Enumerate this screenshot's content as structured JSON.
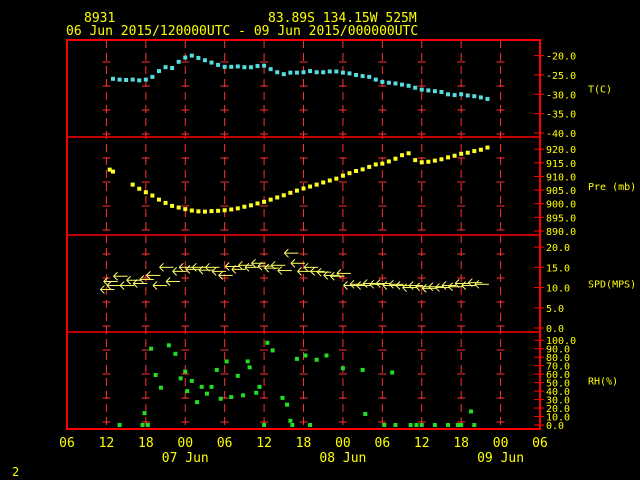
{
  "header": {
    "station": "8931",
    "location": "83.89S  134.15W   525M",
    "time_range": "06 Jun 2015/120000UTC - 09 Jun 2015/000000UTC"
  },
  "footer": {
    "page_number": "2"
  },
  "colors": {
    "background": "#000000",
    "frame": "#ff0000",
    "grid": "#ff3030",
    "labels": "#ffff00",
    "temperature": "#55dddd",
    "pressure": "#ffff22",
    "wind": "#ffff66",
    "humidity": "#22dd22"
  },
  "chart_data": {
    "type": "scatter",
    "x_axis": {
      "unit": "hours since 06 Jun 2015 06 UTC",
      "range": [
        0,
        72
      ],
      "tick_labels": [
        {
          "t": 0,
          "label": "06"
        },
        {
          "t": 6,
          "label": "12"
        },
        {
          "t": 12,
          "label": "18"
        },
        {
          "t": 18,
          "label": "00"
        },
        {
          "t": 24,
          "label": "06"
        },
        {
          "t": 30,
          "label": "12"
        },
        {
          "t": 36,
          "label": "18"
        },
        {
          "t": 42,
          "label": "00"
        },
        {
          "t": 48,
          "label": "06"
        },
        {
          "t": 54,
          "label": "12"
        },
        {
          "t": 60,
          "label": "18"
        },
        {
          "t": 66,
          "label": "00"
        },
        {
          "t": 72,
          "label": "06"
        }
      ],
      "date_labels": [
        {
          "t": 18,
          "label": "07 Jun"
        },
        {
          "t": 42,
          "label": "08 Jun"
        },
        {
          "t": 66,
          "label": "09 Jun"
        }
      ]
    },
    "panels": [
      {
        "id": "temperature",
        "label": "T(C)",
        "ylim": [
          -40,
          -17
        ],
        "ticks": [
          -20,
          -25,
          -30,
          -35,
          -40
        ],
        "tick_labels": [
          "-20.0",
          "-25.0",
          "-30.0",
          "-35.0",
          "-40.0"
        ],
        "points": [
          [
            7,
            -26.0
          ],
          [
            8,
            -26.2
          ],
          [
            9,
            -26.3
          ],
          [
            10,
            -26.2
          ],
          [
            11,
            -26.4
          ],
          [
            12,
            -26.2
          ],
          [
            13,
            -25.5
          ],
          [
            14,
            -24.0
          ],
          [
            15,
            -23.0
          ],
          [
            16,
            -23.2
          ],
          [
            17,
            -21.6
          ],
          [
            18,
            -20.5
          ],
          [
            19,
            -20.0
          ],
          [
            20,
            -20.6
          ],
          [
            21,
            -21.2
          ],
          [
            22,
            -21.8
          ],
          [
            23,
            -22.4
          ],
          [
            24,
            -22.9
          ],
          [
            25,
            -22.9
          ],
          [
            26,
            -22.8
          ],
          [
            27,
            -23.0
          ],
          [
            28,
            -23.0
          ],
          [
            29,
            -22.7
          ],
          [
            30,
            -22.6
          ],
          [
            31,
            -23.5
          ],
          [
            32,
            -24.3
          ],
          [
            33,
            -24.8
          ],
          [
            34,
            -24.4
          ],
          [
            35,
            -24.4
          ],
          [
            36,
            -24.3
          ],
          [
            37,
            -24.0
          ],
          [
            38,
            -24.3
          ],
          [
            39,
            -24.3
          ],
          [
            40,
            -24.1
          ],
          [
            41,
            -24.1
          ],
          [
            42,
            -24.4
          ],
          [
            43,
            -24.6
          ],
          [
            44,
            -25.0
          ],
          [
            45,
            -25.3
          ],
          [
            46,
            -25.5
          ],
          [
            47,
            -26.2
          ],
          [
            48,
            -26.8
          ],
          [
            49,
            -27.0
          ],
          [
            50,
            -27.2
          ],
          [
            51,
            -27.5
          ],
          [
            52,
            -27.8
          ],
          [
            53,
            -28.3
          ],
          [
            54,
            -28.8
          ],
          [
            55,
            -29.0
          ],
          [
            56,
            -29.2
          ],
          [
            57,
            -29.4
          ],
          [
            58,
            -30.0
          ],
          [
            59,
            -30.2
          ],
          [
            60,
            -30.0
          ],
          [
            61,
            -30.3
          ],
          [
            62,
            -30.5
          ],
          [
            63,
            -30.8
          ],
          [
            64,
            -31.2
          ]
        ]
      },
      {
        "id": "pressure",
        "label": "Pre (mb)",
        "ylim": [
          890,
          923
        ],
        "ticks": [
          920,
          915,
          910,
          905,
          900,
          895,
          890
        ],
        "tick_labels": [
          "920.0",
          "915.0",
          "910.0",
          "905.0",
          "900.0",
          "895.0",
          "890.0"
        ],
        "points": [
          [
            6.5,
            912.5
          ],
          [
            7,
            911.8
          ],
          [
            10,
            907.0
          ],
          [
            11,
            905.5
          ],
          [
            12,
            904.2
          ],
          [
            13,
            903.0
          ],
          [
            14,
            901.5
          ],
          [
            15,
            900.3
          ],
          [
            16,
            899.2
          ],
          [
            17,
            898.6
          ],
          [
            18,
            898.0
          ],
          [
            19,
            897.5
          ],
          [
            20,
            897.2
          ],
          [
            21,
            897.1
          ],
          [
            22,
            897.3
          ],
          [
            23,
            897.4
          ],
          [
            24,
            897.6
          ],
          [
            25,
            897.9
          ],
          [
            26,
            898.3
          ],
          [
            27,
            898.9
          ],
          [
            28,
            899.4
          ],
          [
            29,
            900.1
          ],
          [
            30,
            900.7
          ],
          [
            31,
            901.5
          ],
          [
            32,
            902.3
          ],
          [
            33,
            903.1
          ],
          [
            34,
            904.0
          ],
          [
            35,
            904.8
          ],
          [
            36,
            905.6
          ],
          [
            37,
            906.3
          ],
          [
            38,
            907.0
          ],
          [
            39,
            907.8
          ],
          [
            40,
            908.5
          ],
          [
            41,
            909.2
          ],
          [
            42,
            910.3
          ],
          [
            43,
            911.2
          ],
          [
            44,
            912.0
          ],
          [
            45,
            912.6
          ],
          [
            46,
            913.5
          ],
          [
            47,
            914.4
          ],
          [
            48,
            914.7
          ],
          [
            49,
            915.5
          ],
          [
            50,
            916.5
          ],
          [
            51,
            917.8
          ],
          [
            52,
            918.5
          ],
          [
            53,
            916.0
          ],
          [
            54,
            915.2
          ],
          [
            55,
            915.4
          ],
          [
            56,
            915.8
          ],
          [
            57,
            916.3
          ],
          [
            58,
            917.0
          ],
          [
            59,
            917.6
          ],
          [
            60,
            918.3
          ],
          [
            61,
            918.7
          ],
          [
            62,
            919.3
          ],
          [
            63,
            919.8
          ],
          [
            64,
            920.6
          ]
        ]
      },
      {
        "id": "wind",
        "label": "SPD(MPS)",
        "ylim": [
          0,
          22
        ],
        "ticks": [
          20,
          15,
          10,
          5,
          0
        ],
        "tick_labels": [
          "20.0",
          "15.0",
          "10.0",
          "5.0",
          "0.0"
        ],
        "barb_direction": "easterly",
        "points": [
          [
            6,
            9.5
          ],
          [
            6.5,
            11.5
          ],
          [
            7,
            10.5
          ],
          [
            8,
            12.8
          ],
          [
            9,
            10.5
          ],
          [
            10,
            11.8
          ],
          [
            11,
            11.0
          ],
          [
            12,
            12.0
          ],
          [
            13,
            13.0
          ],
          [
            14,
            10.5
          ],
          [
            15,
            15.0
          ],
          [
            16,
            11.5
          ],
          [
            17,
            14.0
          ],
          [
            18,
            15.0
          ],
          [
            19,
            14.5
          ],
          [
            20,
            15.0
          ],
          [
            21,
            14.3
          ],
          [
            22,
            15.0
          ],
          [
            23,
            14.0
          ],
          [
            24,
            13.0
          ],
          [
            25,
            15.2
          ],
          [
            26,
            14.5
          ],
          [
            27,
            15.5
          ],
          [
            28,
            15.0
          ],
          [
            29,
            16.0
          ],
          [
            30,
            15.3
          ],
          [
            31,
            14.8
          ],
          [
            32,
            15.5
          ],
          [
            33,
            14.2
          ],
          [
            34,
            18.5
          ],
          [
            35,
            16.0
          ],
          [
            36,
            14.0
          ],
          [
            37,
            15.0
          ],
          [
            38,
            14.0
          ],
          [
            39,
            13.8
          ],
          [
            40,
            13.0
          ],
          [
            41,
            12.8
          ],
          [
            42,
            13.5
          ],
          [
            43,
            10.5
          ],
          [
            44,
            10.8
          ],
          [
            45,
            10.5
          ],
          [
            46,
            11.0
          ],
          [
            47,
            10.8
          ],
          [
            48,
            11.0
          ],
          [
            49,
            10.5
          ],
          [
            50,
            10.8
          ],
          [
            51,
            10.5
          ],
          [
            52,
            10.0
          ],
          [
            53,
            10.5
          ],
          [
            54,
            10.2
          ],
          [
            55,
            9.8
          ],
          [
            56,
            10.2
          ],
          [
            57,
            10.0
          ],
          [
            58,
            10.5
          ],
          [
            59,
            10.2
          ],
          [
            60,
            11.0
          ],
          [
            61,
            10.5
          ],
          [
            62,
            11.2
          ],
          [
            63,
            10.8
          ]
        ]
      },
      {
        "id": "humidity",
        "label": "RH(%)",
        "ylim": [
          0,
          105
        ],
        "ticks": [
          100,
          90,
          80,
          70,
          60,
          50,
          40,
          30,
          20,
          10,
          0
        ],
        "tick_labels": [
          "100.0",
          "90.0",
          "80.0",
          "70.0",
          "60.0",
          "50.0",
          "40.0",
          "30.0",
          "20.0",
          "10.0",
          "0.0"
        ],
        "points": [
          [
            8,
            0
          ],
          [
            11.5,
            0
          ],
          [
            11.8,
            14
          ],
          [
            12.3,
            0
          ],
          [
            12.8,
            90
          ],
          [
            13.5,
            59
          ],
          [
            14.3,
            44
          ],
          [
            15.5,
            94
          ],
          [
            16.5,
            84
          ],
          [
            17.3,
            55
          ],
          [
            18,
            63
          ],
          [
            18.3,
            40
          ],
          [
            19,
            52
          ],
          [
            19.8,
            27
          ],
          [
            20.5,
            45
          ],
          [
            21.3,
            37
          ],
          [
            22,
            45
          ],
          [
            22.8,
            65
          ],
          [
            23.4,
            31
          ],
          [
            24.3,
            75
          ],
          [
            25,
            33
          ],
          [
            26,
            58
          ],
          [
            26.8,
            35
          ],
          [
            27.5,
            75
          ],
          [
            27.8,
            68
          ],
          [
            28.8,
            38
          ],
          [
            29.3,
            45
          ],
          [
            30,
            0
          ],
          [
            30.5,
            97
          ],
          [
            31.3,
            88
          ],
          [
            32.8,
            32
          ],
          [
            33.5,
            24
          ],
          [
            34,
            5
          ],
          [
            34.3,
            0
          ],
          [
            35,
            78
          ],
          [
            36.3,
            82
          ],
          [
            37,
            0
          ],
          [
            38,
            77
          ],
          [
            39.5,
            82
          ],
          [
            42,
            67
          ],
          [
            45,
            65
          ],
          [
            45.4,
            13
          ],
          [
            48.3,
            0
          ],
          [
            49.5,
            62
          ],
          [
            50,
            0
          ],
          [
            52.3,
            0
          ],
          [
            53.2,
            0
          ],
          [
            54,
            0
          ],
          [
            56,
            0
          ],
          [
            58,
            0
          ],
          [
            59.5,
            0
          ],
          [
            60,
            0
          ],
          [
            61.5,
            16
          ],
          [
            62,
            0
          ]
        ]
      }
    ]
  }
}
